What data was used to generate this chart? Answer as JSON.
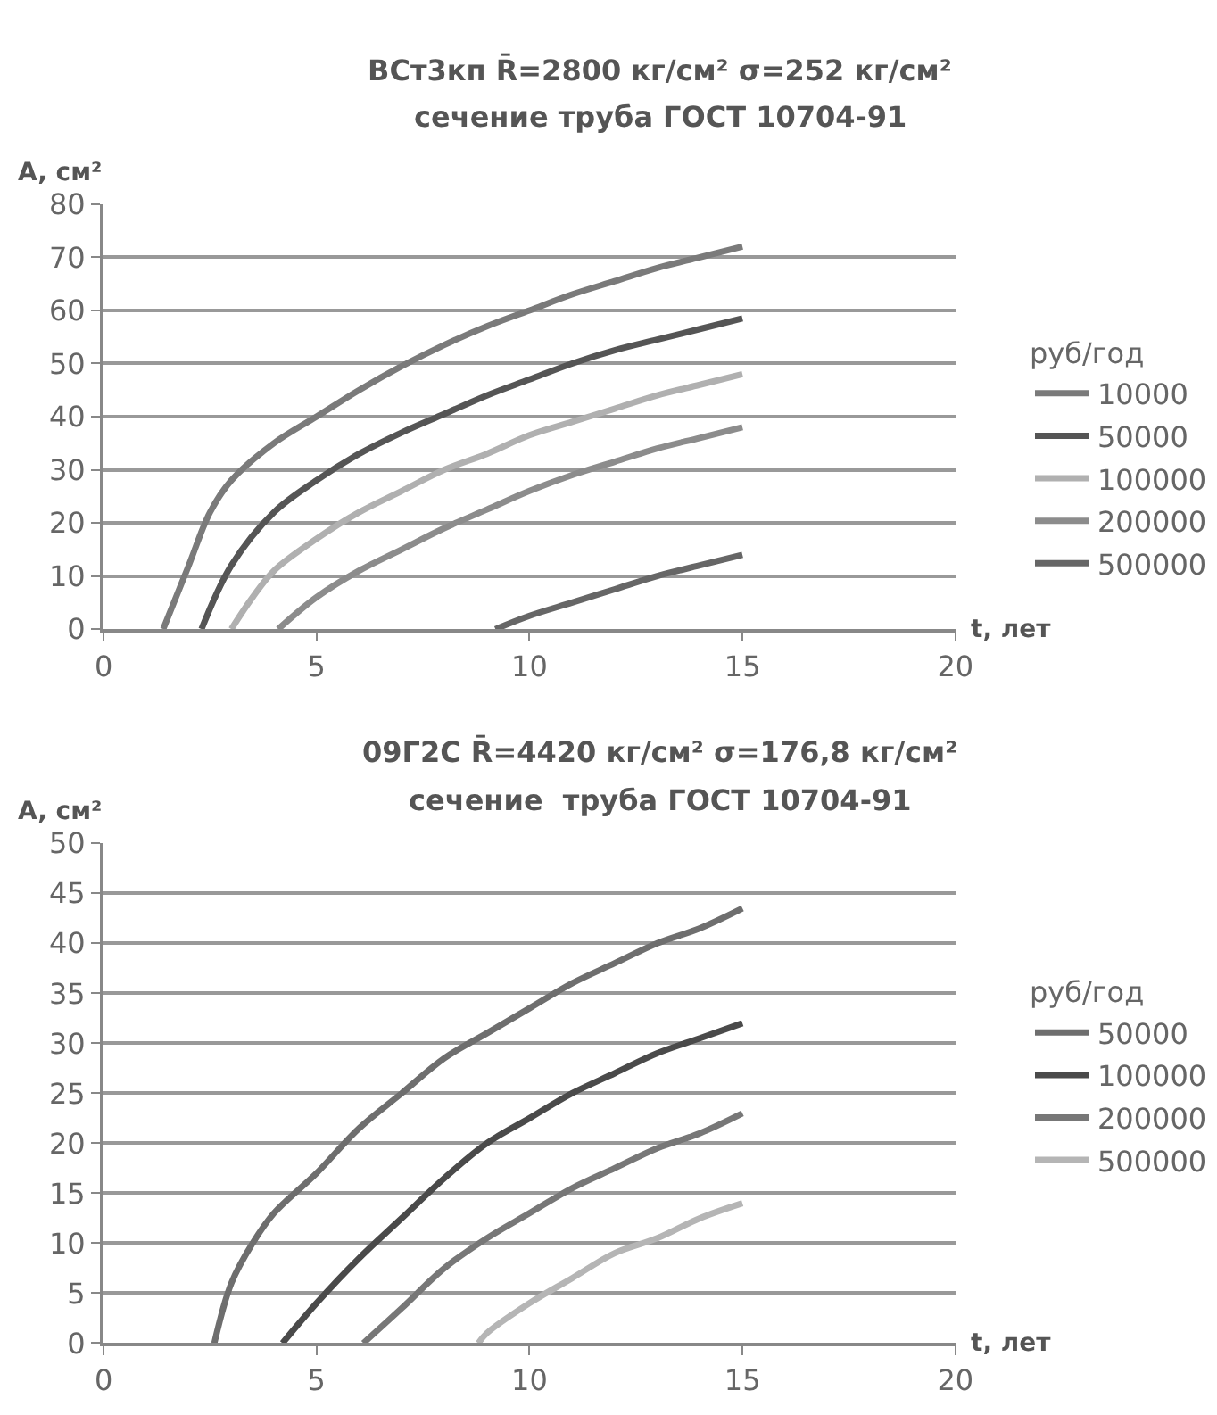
{
  "chart_data": [
    {
      "type": "line",
      "title": "ВСт3кп R̄=2800 кг/см² σ=252 кг/см²",
      "subtitle": "сечение труба ГОСТ 10704-91",
      "xlabel": "t, лет",
      "ylabel": "A, см²",
      "legend_title": "руб/год",
      "xlim": [
        0,
        20
      ],
      "xticks": [
        0,
        5,
        10,
        15,
        20
      ],
      "ylim": [
        0,
        80
      ],
      "yticks": [
        0,
        10,
        20,
        30,
        40,
        50,
        60,
        70,
        80
      ],
      "grid": "y",
      "legend": "right",
      "marker": "none",
      "line_style": "solid",
      "series": [
        {
          "name": "10000",
          "color": "#7a7a7a",
          "x": [
            1.4,
            2,
            2.5,
            3,
            4,
            5,
            6,
            7,
            8,
            9,
            10,
            11,
            12,
            13,
            14,
            15
          ],
          "values": [
            0,
            12,
            22,
            28,
            35,
            40,
            45,
            49.5,
            53.5,
            57,
            60,
            63,
            65.5,
            68,
            70,
            72
          ]
        },
        {
          "name": "50000",
          "color": "#555555",
          "x": [
            2.3,
            3,
            4,
            5,
            6,
            7,
            8,
            9,
            10,
            11,
            12,
            13,
            14,
            15
          ],
          "values": [
            0,
            12,
            22,
            28,
            33,
            37,
            40.5,
            44,
            47,
            50,
            52.5,
            54.5,
            56.5,
            58.5
          ]
        },
        {
          "name": "100000",
          "color": "#b0b0b0",
          "x": [
            3,
            3.5,
            4,
            5,
            6,
            7,
            8,
            9,
            10,
            11,
            12,
            13,
            14,
            15
          ],
          "values": [
            0,
            6,
            11,
            17,
            22,
            26,
            30,
            33,
            36.5,
            39,
            41.5,
            44,
            46,
            48
          ]
        },
        {
          "name": "200000",
          "color": "#8c8c8c",
          "x": [
            4.1,
            5,
            6,
            7,
            8,
            9,
            10,
            11,
            12,
            13,
            14,
            15
          ],
          "values": [
            0,
            6,
            11,
            15,
            19,
            22.5,
            26,
            29,
            31.5,
            34,
            36,
            38
          ]
        },
        {
          "name": "500000",
          "color": "#666666",
          "x": [
            9.2,
            10,
            11,
            12,
            13,
            14,
            15
          ],
          "values": [
            0,
            2.5,
            5,
            7.5,
            10,
            12,
            14
          ]
        }
      ]
    },
    {
      "type": "line",
      "title": "09Г2С R̄=4420 кг/см² σ=176,8 кг/см²",
      "subtitle": "сечение  труба ГОСТ 10704-91",
      "xlabel": "t, лет",
      "ylabel": "A, см²",
      "legend_title": "руб/год",
      "xlim": [
        0,
        20
      ],
      "xticks": [
        0,
        5,
        10,
        15,
        20
      ],
      "ylim": [
        0,
        50
      ],
      "yticks": [
        0,
        5,
        10,
        15,
        20,
        25,
        30,
        35,
        40,
        45,
        50
      ],
      "grid": "y",
      "legend": "right",
      "marker": "none",
      "line_style": "solid",
      "series": [
        {
          "name": "50000",
          "color": "#6e6e6e",
          "x": [
            2.6,
            3,
            3.5,
            4,
            5,
            6,
            7,
            8,
            9,
            10,
            11,
            12,
            13,
            14,
            15
          ],
          "values": [
            0,
            6,
            10,
            13,
            17,
            21.5,
            25,
            28.5,
            31,
            33.5,
            36,
            38,
            40,
            41.5,
            43.5
          ]
        },
        {
          "name": "100000",
          "color": "#4a4a4a",
          "x": [
            4.2,
            5,
            6,
            7,
            8,
            9,
            10,
            11,
            12,
            13,
            14,
            15
          ],
          "values": [
            0,
            4,
            8.5,
            12.5,
            16.5,
            20,
            22.5,
            25,
            27,
            29,
            30.5,
            32
          ]
        },
        {
          "name": "200000",
          "color": "#777777",
          "x": [
            6.1,
            7,
            8,
            9,
            10,
            11,
            12,
            13,
            14,
            15
          ],
          "values": [
            0,
            3.5,
            7.5,
            10.5,
            13,
            15.5,
            17.5,
            19.5,
            21,
            23
          ]
        },
        {
          "name": "500000",
          "color": "#b5b5b5",
          "x": [
            8.8,
            9,
            10,
            11,
            12,
            13,
            14,
            15
          ],
          "values": [
            0,
            1,
            4,
            6.5,
            9,
            10.5,
            12.5,
            14
          ]
        }
      ]
    }
  ]
}
